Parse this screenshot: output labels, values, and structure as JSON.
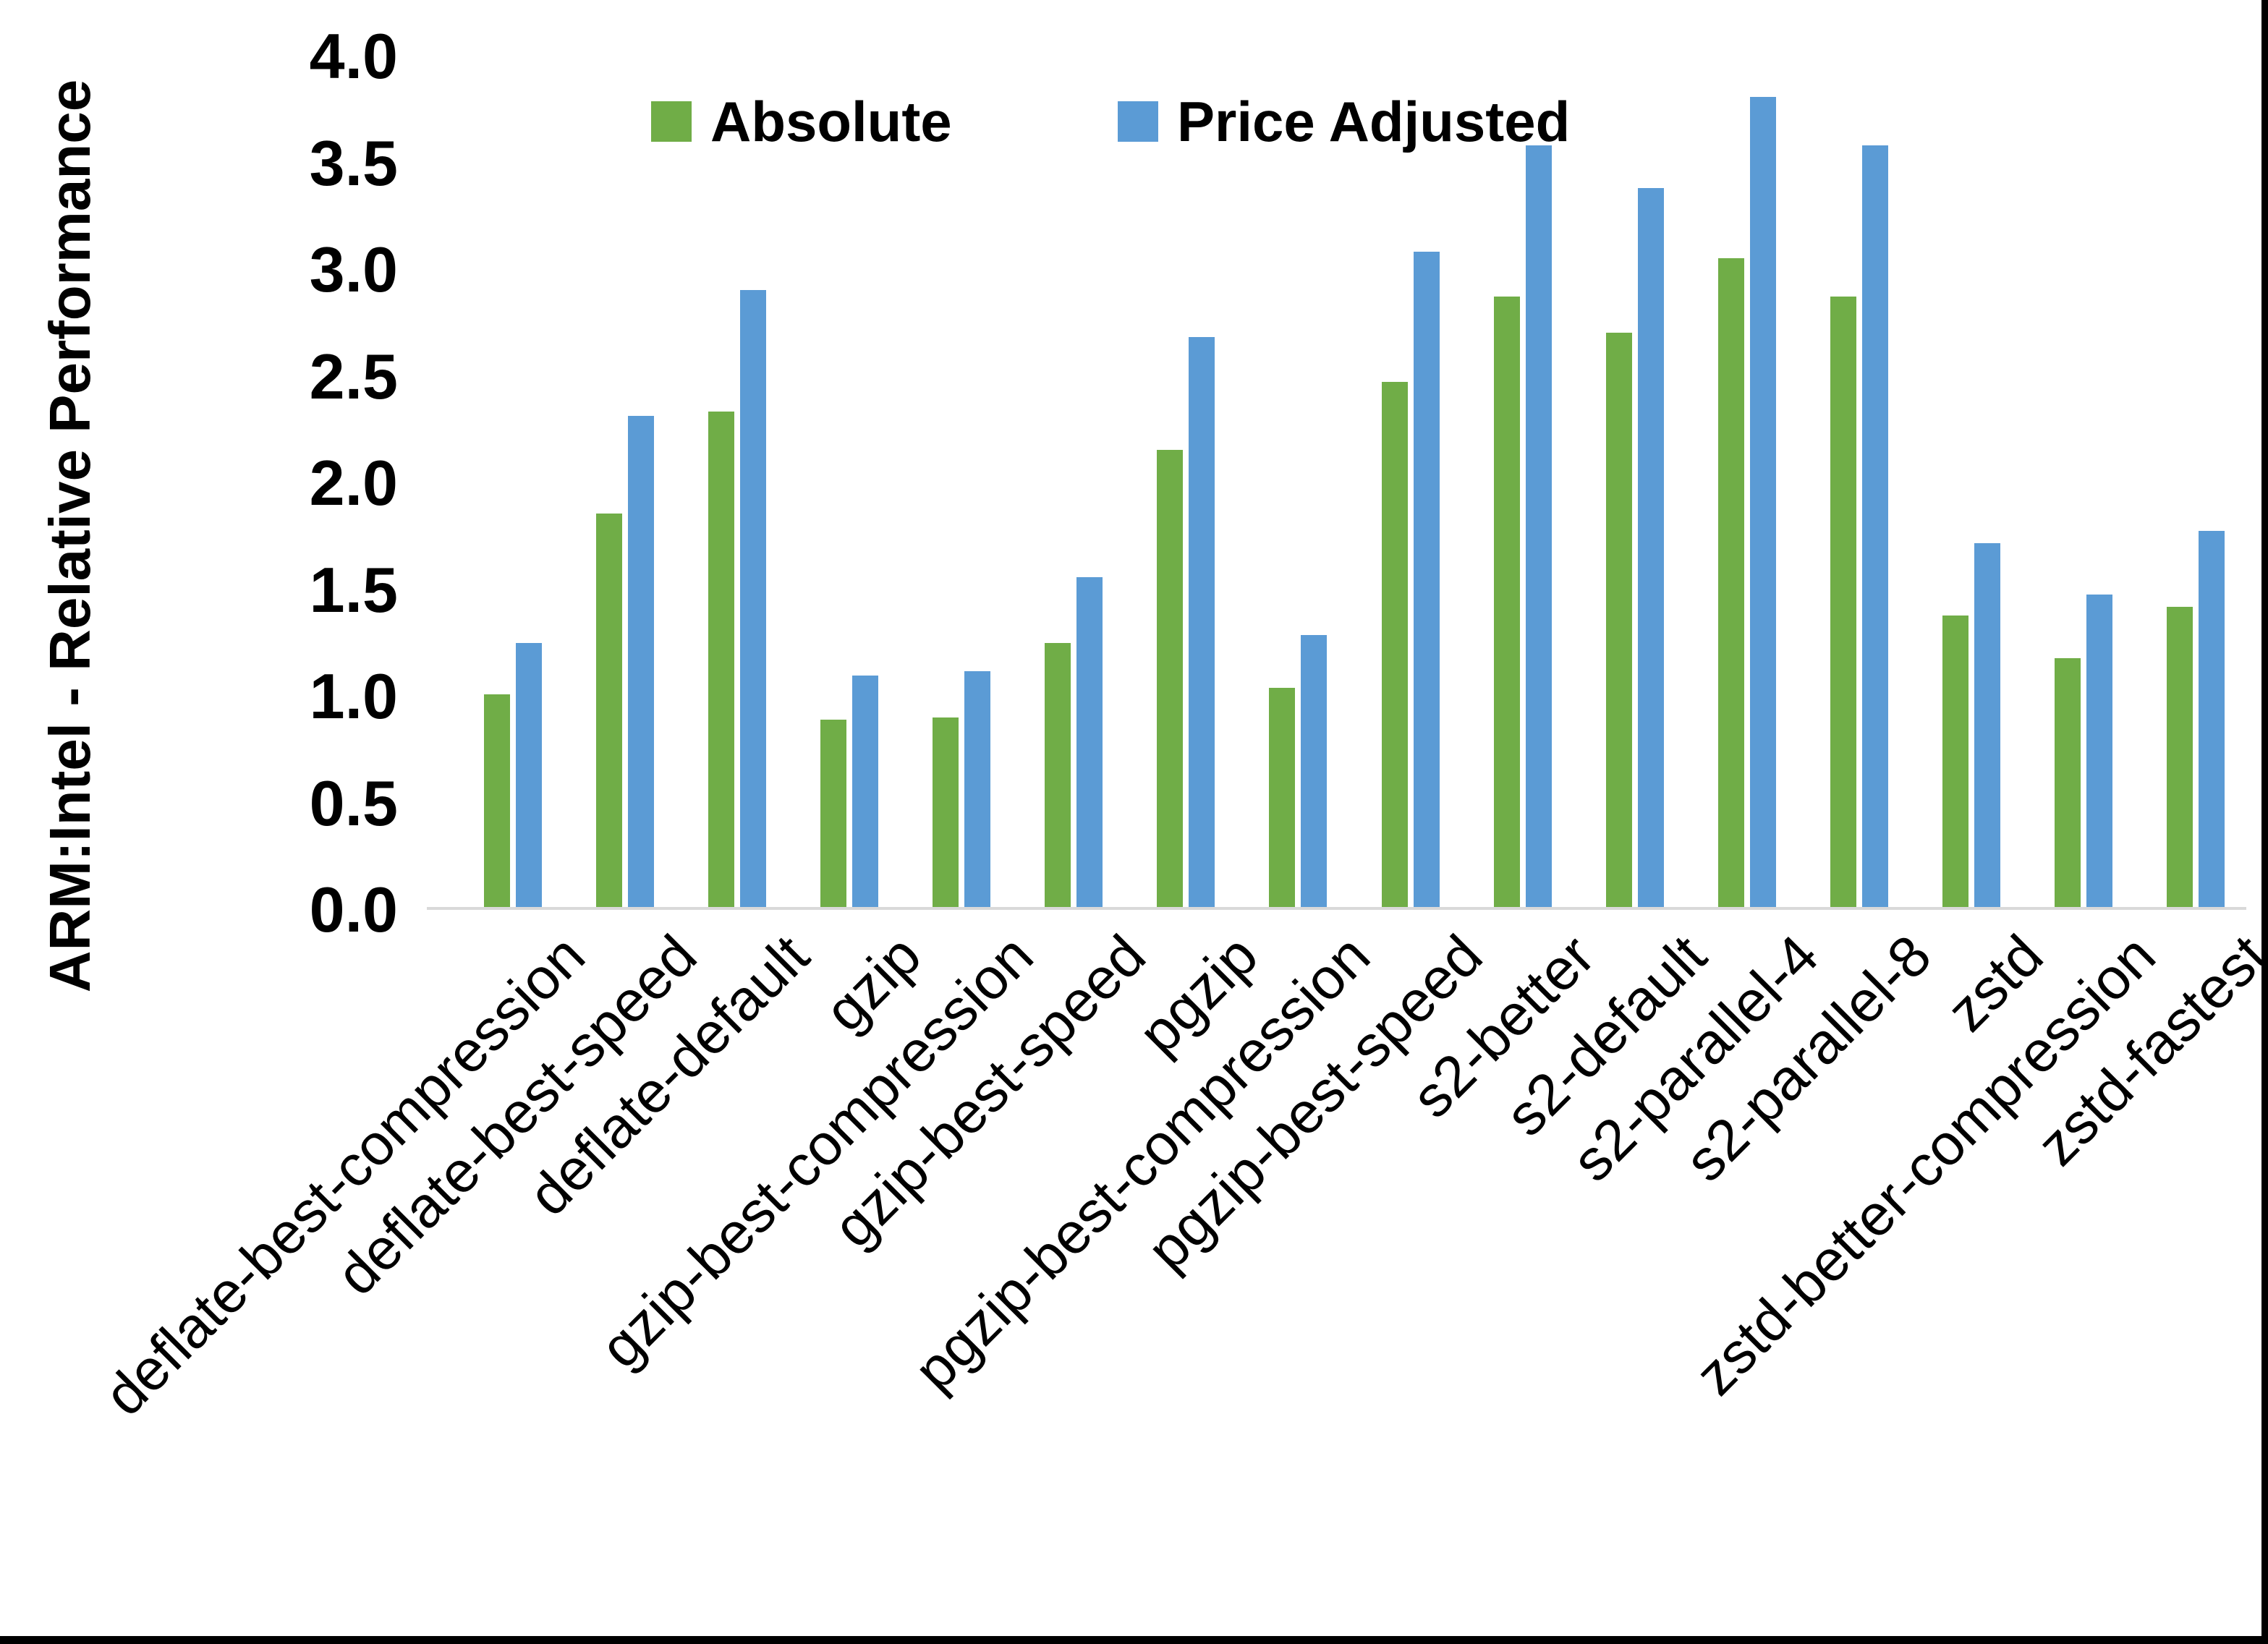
{
  "page": {
    "background": "#FFFFFF",
    "frame_color": "#000000",
    "text_color": "#000000"
  },
  "chart_data": {
    "type": "bar",
    "title": "",
    "xlabel": "",
    "ylabel": "ARM:Intel - Relative Performance",
    "ylim": [
      0.0,
      4.0
    ],
    "ytick_step": 0.5,
    "yticks": [
      "0.0",
      "0.5",
      "1.0",
      "1.5",
      "2.0",
      "2.5",
      "3.0",
      "3.5",
      "4.0"
    ],
    "grid": false,
    "legend_position": "top-center",
    "axis_line_color": "#D9D9D9",
    "categories": [
      "deflate-best-compression",
      "deflate-best-speed",
      "deflate-default",
      "gzip",
      "gzip-best-compression",
      "gzip-best-speed",
      "pgzip",
      "pgzip-best-compression",
      "pgzip-best-speed",
      "s2-better",
      "s2-default",
      "s2-parallel-4",
      "s2-parallel-8",
      "zstd",
      "zstd-better-compression",
      "zstd-fastest"
    ],
    "series": [
      {
        "name": "Absolute",
        "color": "#70AD47",
        "values": [
          1.0,
          1.85,
          2.33,
          0.88,
          0.89,
          1.24,
          2.15,
          1.03,
          2.47,
          2.87,
          2.7,
          3.05,
          2.87,
          1.37,
          1.17,
          1.41
        ]
      },
      {
        "name": "Price Adjusted",
        "color": "#5B9BD5",
        "values": [
          1.24,
          2.31,
          2.9,
          1.09,
          1.11,
          1.55,
          2.68,
          1.28,
          3.08,
          3.58,
          3.38,
          3.81,
          3.58,
          1.71,
          1.47,
          1.77
        ]
      }
    ]
  }
}
